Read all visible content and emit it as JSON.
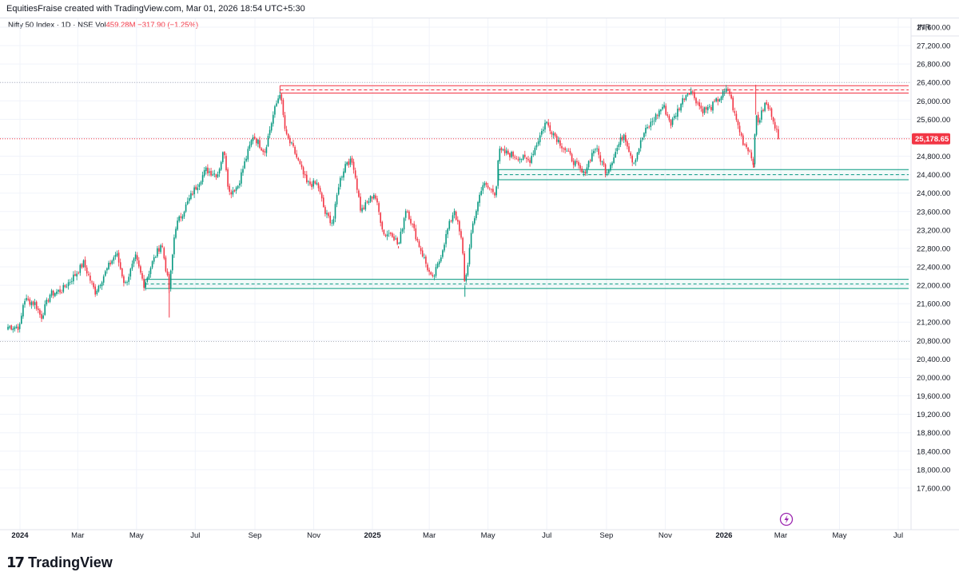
{
  "header": {
    "credit": "EquitiesFraise created with TradingView.com, Mar 01, 2026 18:54 UTC+5:30"
  },
  "symbol": {
    "name": "Nifty 50 Index · 1D · NSE",
    "vol_label": "Vol",
    "volume": "459.28M",
    "change": "−317.90 (−1.25%)"
  },
  "currency": "INR",
  "brand": {
    "logo_mark": "17",
    "name": "TradingView"
  },
  "colors": {
    "up": "#089981",
    "down": "#f23645",
    "resistance": "#f23645",
    "support": "#089981",
    "grid": "#f0f3fa",
    "last_price_bg": "#f23645"
  },
  "chart_data": {
    "type": "candlestick",
    "symbol": "Nifty 50 Index",
    "interval": "1D",
    "exchange": "NSE",
    "ylim": [
      17400,
      27900
    ],
    "y_ticks": [
      "27,600.00",
      "27,200.00",
      "26,800.00",
      "26,400.00",
      "26,000.00",
      "25,600.00",
      "25,200.00",
      "24,800.00",
      "24,400.00",
      "24,000.00",
      "23,600.00",
      "23,200.00",
      "22,800.00",
      "22,400.00",
      "22,000.00",
      "21,600.00",
      "21,200.00",
      "20,800.00",
      "20,400.00",
      "20,000.00",
      "19,600.00",
      "19,200.00",
      "18,800.00",
      "18,400.00",
      "18,000.00",
      "17,600.00"
    ],
    "x_ticks": [
      {
        "label": "2024",
        "date": "2024-01-01",
        "bold": true
      },
      {
        "label": "Mar",
        "date": "2024-03-01"
      },
      {
        "label": "May",
        "date": "2024-05-01"
      },
      {
        "label": "Jul",
        "date": "2024-07-01"
      },
      {
        "label": "Sep",
        "date": "2024-09-01"
      },
      {
        "label": "Nov",
        "date": "2024-11-01"
      },
      {
        "label": "2025",
        "date": "2025-01-01",
        "bold": true
      },
      {
        "label": "Mar",
        "date": "2025-03-01"
      },
      {
        "label": "May",
        "date": "2025-05-01"
      },
      {
        "label": "Jul",
        "date": "2025-07-01"
      },
      {
        "label": "Sep",
        "date": "2025-09-01"
      },
      {
        "label": "Nov",
        "date": "2025-11-01"
      },
      {
        "label": "2026",
        "date": "2026-01-01",
        "bold": true
      },
      {
        "label": "Mar",
        "date": "2026-03-01"
      },
      {
        "label": "May",
        "date": "2026-05-01"
      },
      {
        "label": "Jul",
        "date": "2026-07-01"
      }
    ],
    "last_price": 25178.65,
    "last_price_label": "25,178.65",
    "dotted_levels": [
      26400,
      25178.65,
      20780
    ],
    "zones": [
      {
        "type": "resistance",
        "start": "2024-09-27",
        "end": "2026-07-15",
        "top": 26330,
        "mid": 26240,
        "bottom": 26170
      },
      {
        "type": "support",
        "start": "2025-05-12",
        "end": "2026-07-15",
        "top": 24510,
        "mid": 24400,
        "bottom": 24290
      },
      {
        "type": "support",
        "start": "2024-05-10",
        "end": "2026-07-15",
        "top": 22130,
        "mid": 22030,
        "bottom": 21930
      }
    ],
    "path": [
      [
        "2024-01-01",
        21100
      ],
      [
        "2024-01-05",
        21700
      ],
      [
        "2024-01-17",
        21600
      ],
      [
        "2024-01-23",
        21300
      ],
      [
        "2024-02-01",
        21800
      ],
      [
        "2024-02-14",
        21900
      ],
      [
        "2024-03-01",
        22300
      ],
      [
        "2024-03-07",
        22480
      ],
      [
        "2024-03-19",
        21850
      ],
      [
        "2024-04-03",
        22450
      ],
      [
        "2024-04-10",
        22700
      ],
      [
        "2024-04-19",
        22000
      ],
      [
        "2024-04-30",
        22600
      ],
      [
        "2024-05-09",
        22000
      ],
      [
        "2024-05-17",
        22470
      ],
      [
        "2024-05-27",
        22930
      ],
      [
        "2024-06-04",
        21900
      ],
      [
        "2024-06-10",
        23250
      ],
      [
        "2024-06-28",
        24000
      ],
      [
        "2024-07-12",
        24500
      ],
      [
        "2024-07-24",
        24400
      ],
      [
        "2024-07-31",
        24950
      ],
      [
        "2024-08-05",
        24000
      ],
      [
        "2024-08-14",
        24150
      ],
      [
        "2024-08-30",
        25250
      ],
      [
        "2024-09-11",
        24900
      ],
      [
        "2024-09-20",
        25700
      ],
      [
        "2024-09-27",
        26200
      ],
      [
        "2024-10-03",
        25250
      ],
      [
        "2024-10-11",
        24950
      ],
      [
        "2024-10-25",
        24200
      ],
      [
        "2024-11-05",
        24200
      ],
      [
        "2024-11-13",
        23550
      ],
      [
        "2024-11-21",
        23350
      ],
      [
        "2024-11-27",
        24200
      ],
      [
        "2024-12-05",
        24700
      ],
      [
        "2024-12-12",
        24650
      ],
      [
        "2024-12-20",
        23600
      ],
      [
        "2025-01-03",
        24000
      ],
      [
        "2025-01-13",
        23100
      ],
      [
        "2025-01-21",
        23150
      ],
      [
        "2025-01-28",
        22850
      ],
      [
        "2025-02-05",
        23700
      ],
      [
        "2025-02-17",
        22950
      ],
      [
        "2025-03-04",
        22100
      ],
      [
        "2025-03-11",
        22500
      ],
      [
        "2025-03-20",
        23200
      ],
      [
        "2025-03-27",
        23650
      ],
      [
        "2025-04-04",
        22900
      ],
      [
        "2025-04-07",
        22000
      ],
      [
        "2025-04-15",
        23300
      ],
      [
        "2025-04-25",
        24200
      ],
      [
        "2025-05-09",
        24000
      ],
      [
        "2025-05-12",
        24900
      ],
      [
        "2025-05-23",
        24850
      ],
      [
        "2025-06-13",
        24700
      ],
      [
        "2025-06-30",
        25550
      ],
      [
        "2025-07-11",
        25200
      ],
      [
        "2025-07-25",
        24800
      ],
      [
        "2025-08-08",
        24400
      ],
      [
        "2025-08-20",
        25000
      ],
      [
        "2025-09-01",
        24450
      ],
      [
        "2025-09-19",
        25300
      ],
      [
        "2025-09-29",
        24650
      ],
      [
        "2025-10-10",
        25300
      ],
      [
        "2025-10-30",
        25900
      ],
      [
        "2025-11-07",
        25500
      ],
      [
        "2025-11-21",
        26100
      ],
      [
        "2025-11-27",
        26250
      ],
      [
        "2025-12-09",
        25800
      ],
      [
        "2025-12-18",
        25850
      ],
      [
        "2025-12-31",
        26150
      ],
      [
        "2026-01-06",
        26250
      ],
      [
        "2026-01-12",
        25700
      ],
      [
        "2026-01-21",
        25100
      ],
      [
        "2026-01-27",
        24950
      ],
      [
        "2026-02-01",
        24650
      ],
      [
        "2026-02-03",
        25700
      ],
      [
        "2026-02-06",
        25550
      ],
      [
        "2026-02-13",
        25950
      ],
      [
        "2026-02-20",
        25700
      ],
      [
        "2026-02-27",
        25178.65
      ]
    ],
    "spikes": [
      {
        "date": "2024-06-04",
        "low": 21300
      },
      {
        "date": "2025-04-07",
        "low": 21750
      },
      {
        "date": "2025-01-28",
        "low": 22800
      },
      {
        "date": "2026-02-01",
        "low": 24550
      },
      {
        "date": "2026-02-03",
        "high": 26350
      }
    ]
  }
}
